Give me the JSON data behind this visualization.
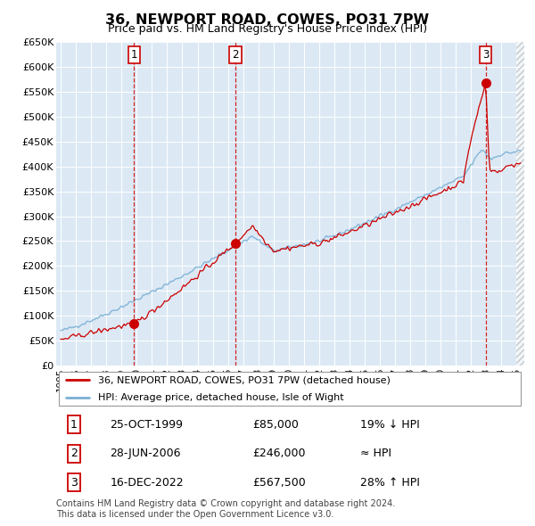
{
  "title": "36, NEWPORT ROAD, COWES, PO31 7PW",
  "subtitle": "Price paid vs. HM Land Registry's House Price Index (HPI)",
  "plot_background": "#dce9f5",
  "ylim": [
    0,
    650000
  ],
  "yticks": [
    0,
    50000,
    100000,
    150000,
    200000,
    250000,
    300000,
    350000,
    400000,
    450000,
    500000,
    550000,
    600000,
    650000
  ],
  "ytick_labels": [
    "£0",
    "£50K",
    "£100K",
    "£150K",
    "£200K",
    "£250K",
    "£300K",
    "£350K",
    "£400K",
    "£450K",
    "£500K",
    "£550K",
    "£600K",
    "£650K"
  ],
  "sale_dates": [
    1999.82,
    2006.49,
    2022.96
  ],
  "sale_prices": [
    85000,
    246000,
    567500
  ],
  "sale_labels": [
    "1",
    "2",
    "3"
  ],
  "red_line_color": "#cc0000",
  "blue_line_color": "#7ab0d4",
  "dashed_line_color": "#cc0000",
  "legend_entry1": "36, NEWPORT ROAD, COWES, PO31 7PW (detached house)",
  "legend_entry2": "HPI: Average price, detached house, Isle of Wight",
  "table_rows": [
    [
      "1",
      "25-OCT-1999",
      "£85,000",
      "19% ↓ HPI"
    ],
    [
      "2",
      "28-JUN-2006",
      "£246,000",
      "≈ HPI"
    ],
    [
      "3",
      "16-DEC-2022",
      "£567,500",
      "28% ↑ HPI"
    ]
  ],
  "footer": "Contains HM Land Registry data © Crown copyright and database right 2024.\nThis data is licensed under the Open Government Licence v3.0.",
  "xmin": 1994.7,
  "xmax": 2025.5
}
